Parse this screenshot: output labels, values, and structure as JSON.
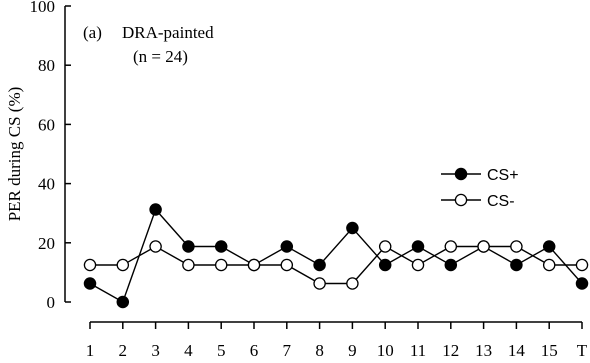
{
  "chart_data": {
    "type": "line",
    "panel_label": "(a)",
    "title": "DRA-painted",
    "subtitle": "(n = 24)",
    "xlabel": "",
    "ylabel": "PER during CS (%)",
    "categories": [
      "1",
      "2",
      "3",
      "4",
      "5",
      "6",
      "7",
      "8",
      "9",
      "10",
      "11",
      "12",
      "13",
      "14",
      "15",
      "T"
    ],
    "ylim": [
      0,
      100
    ],
    "yticks": [
      0,
      20,
      40,
      60,
      80,
      100
    ],
    "legend_position": "right-middle",
    "grid": false,
    "series": [
      {
        "name": "CS+",
        "marker": "filled-circle",
        "color": "#000000",
        "values": [
          6.25,
          0,
          31.25,
          18.75,
          18.75,
          12.5,
          18.75,
          12.5,
          25,
          12.5,
          18.75,
          12.5,
          18.75,
          12.5,
          18.75,
          6.25
        ]
      },
      {
        "name": "CS-",
        "marker": "open-circle",
        "color": "#000000",
        "values": [
          12.5,
          12.5,
          18.75,
          12.5,
          12.5,
          12.5,
          12.5,
          6.25,
          6.25,
          18.75,
          12.5,
          18.75,
          18.75,
          18.75,
          12.5,
          12.5
        ]
      }
    ]
  }
}
